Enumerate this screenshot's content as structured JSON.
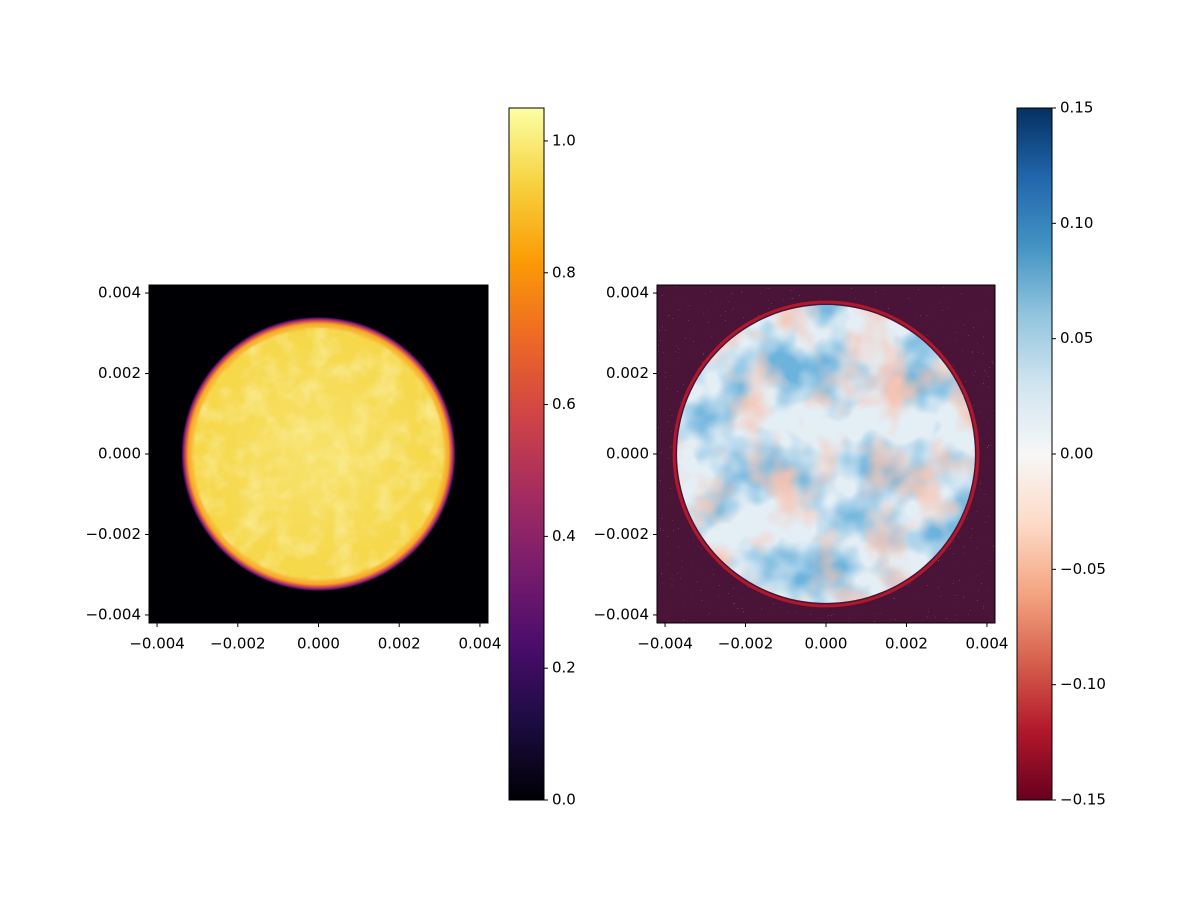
{
  "chart_data": [
    {
      "type": "heatmap",
      "colormap": "inferno",
      "xlim": [
        -0.0042,
        0.0042
      ],
      "ylim": [
        -0.0042,
        0.0042
      ],
      "xticks": [
        {
          "value": -0.004,
          "label": "−0.004"
        },
        {
          "value": -0.002,
          "label": "−0.002"
        },
        {
          "value": 0,
          "label": "0.000"
        },
        0.002,
        0.004
      ],
      "yticks": [
        {
          "value": -0.004,
          "label": "−0.004"
        },
        {
          "value": -0.002,
          "label": "−0.002"
        },
        {
          "value": 0,
          "label": "0.000"
        },
        0.002,
        0.004
      ],
      "disk_radius": 0.0034,
      "clim": [
        0,
        1.05
      ],
      "cticks": [
        {
          "value": 0,
          "label": "0.0"
        },
        0.2,
        0.4,
        0.6,
        0.8,
        {
          "value": 1,
          "label": "1.0"
        }
      ]
    },
    {
      "type": "heatmap",
      "colormap": "RdBu",
      "xlim": [
        -0.0042,
        0.0042
      ],
      "ylim": [
        -0.0042,
        0.0042
      ],
      "xticks": [
        {
          "value": -0.004,
          "label": "−0.004"
        },
        {
          "value": -0.002,
          "label": "−0.002"
        },
        {
          "value": 0,
          "label": "0.000"
        },
        0.002,
        0.004
      ],
      "yticks": [
        {
          "value": -0.004,
          "label": "−0.004"
        },
        {
          "value": -0.002,
          "label": "−0.002"
        },
        {
          "value": 0,
          "label": "0.000"
        },
        0.002,
        0.004
      ],
      "disk_radius": 0.0037,
      "clim": [
        -0.15,
        0.15
      ],
      "cticks": [
        {
          "value": -0.15,
          "label": "−0.15"
        },
        {
          "value": -0.1,
          "label": "−0.10"
        },
        {
          "value": -0.05,
          "label": "−0.05"
        },
        {
          "value": 0,
          "label": "0.00"
        },
        0.05,
        {
          "value": 0.1,
          "label": "0.10"
        },
        0.15
      ]
    }
  ]
}
